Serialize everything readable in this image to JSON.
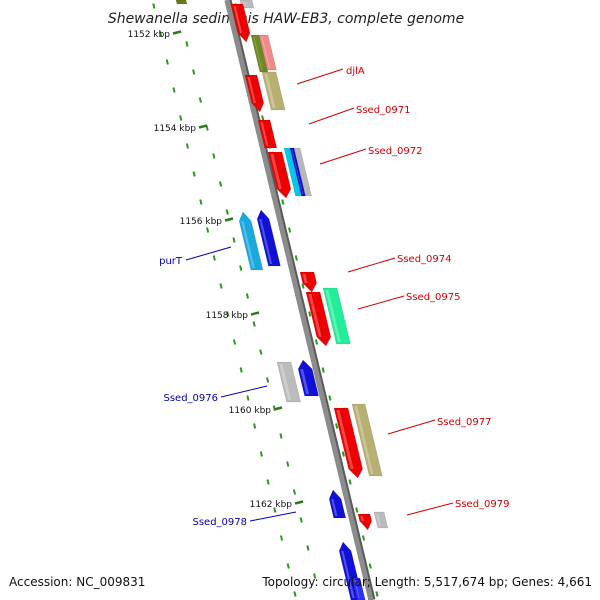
{
  "title": "Shewanella sediminis HAW-EB3, complete genome",
  "footer": {
    "accession": "Accession: NC_009831",
    "summary": "Topology: circular; Length: 5,517,674 bp; Genes: 4,661"
  },
  "colors": {
    "backbone": "#8c8c8c",
    "tick_mark": "#2a7a1a",
    "grid_dot": "#2a9a1a",
    "label_forward": "#d00000",
    "label_reverse": "#0000b0"
  },
  "scale_labels": [
    "1152 kbp",
    "1154 kbp",
    "1156 kbp",
    "1158 kbp",
    "1160 kbp",
    "1162 kbp"
  ],
  "gene_labels_forward": [
    "djlA",
    "Ssed_0971",
    "Ssed_0972",
    "Ssed_0974",
    "Ssed_0975",
    "Ssed_0977",
    "Ssed_0979"
  ],
  "gene_labels_reverse": [
    "purT",
    "Ssed_0976",
    "Ssed_0978"
  ]
}
